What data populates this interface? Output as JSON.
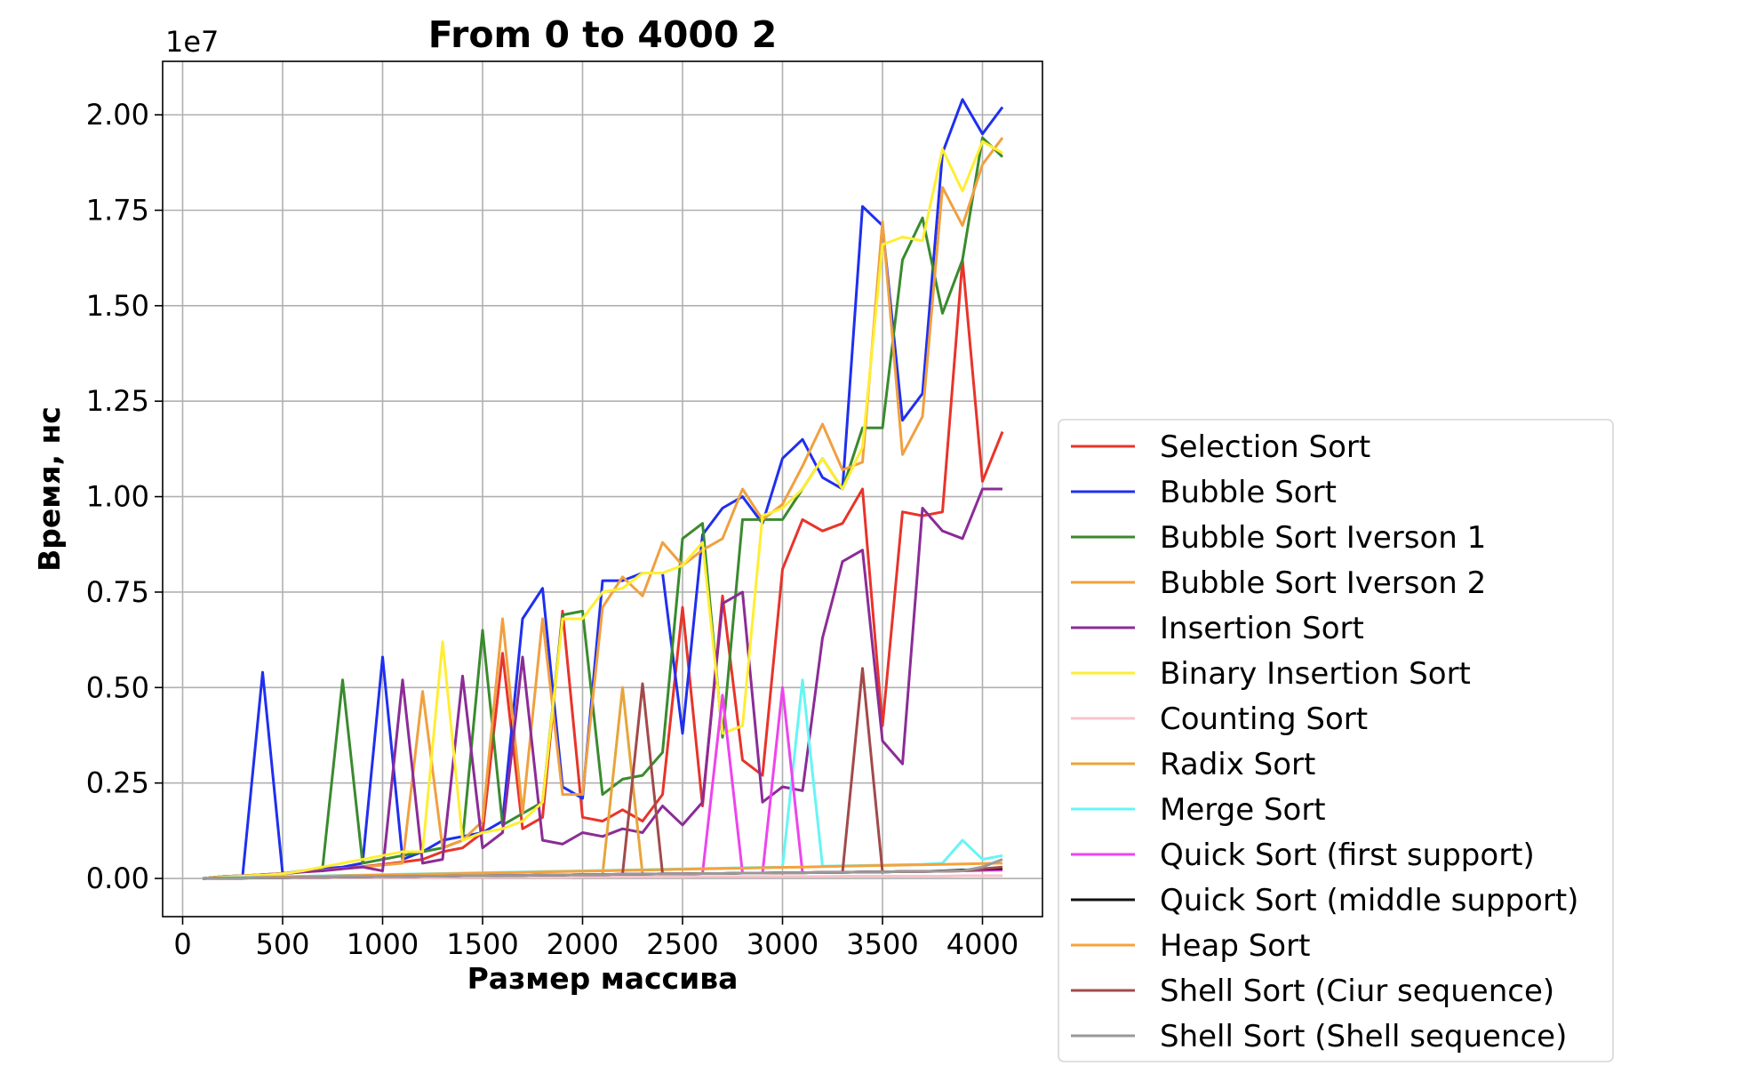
{
  "chart_data": {
    "type": "line",
    "title": "From 0 to 4000 2",
    "xlabel": "Размер массива",
    "ylabel": "Время, нс",
    "y_multiplier_label": "1e7",
    "xlim": [
      -100,
      4300
    ],
    "ylim": [
      -0.1,
      2.14
    ],
    "x_ticks": [
      0,
      500,
      1000,
      1500,
      2000,
      2500,
      3000,
      3500,
      4000
    ],
    "x_tick_labels": [
      "0",
      "500",
      "1000",
      "1500",
      "2000",
      "2500",
      "3000",
      "3500",
      "4000"
    ],
    "y_ticks": [
      0.0,
      0.25,
      0.5,
      0.75,
      1.0,
      1.25,
      1.5,
      1.75,
      2.0
    ],
    "y_tick_labels": [
      "0.00",
      "0.25",
      "0.50",
      "0.75",
      "1.00",
      "1.25",
      "1.50",
      "1.75",
      "2.00"
    ],
    "grid": true,
    "legend_position": "outside-right-bottom",
    "x": [
      100,
      200,
      300,
      400,
      500,
      600,
      700,
      800,
      900,
      1000,
      1100,
      1200,
      1300,
      1400,
      1500,
      1600,
      1700,
      1800,
      1900,
      2000,
      2100,
      2200,
      2300,
      2400,
      2500,
      2600,
      2700,
      2800,
      2900,
      3000,
      3100,
      3200,
      3300,
      3400,
      3500,
      3600,
      3700,
      3800,
      3900,
      4000,
      4100
    ],
    "series": [
      {
        "name": "Selection Sort",
        "color": "#e8342a",
        "values": [
          0.0,
          0.005,
          0.007,
          0.01,
          0.013,
          0.017,
          0.021,
          0.026,
          0.031,
          0.037,
          0.043,
          0.05,
          0.07,
          0.08,
          0.12,
          0.59,
          0.13,
          0.16,
          0.7,
          0.16,
          0.15,
          0.18,
          0.15,
          0.22,
          0.71,
          0.19,
          0.74,
          0.31,
          0.27,
          0.81,
          0.94,
          0.91,
          0.93,
          1.02,
          0.4,
          0.96,
          0.95,
          0.96,
          1.62,
          1.04,
          1.17
        ]
      },
      {
        "name": "Bubble Sort",
        "color": "#1f2ff0",
        "values": [
          0.0,
          0.005,
          0.007,
          0.54,
          0.013,
          0.02,
          0.025,
          0.03,
          0.04,
          0.58,
          0.05,
          0.07,
          0.1,
          0.11,
          0.12,
          0.15,
          0.68,
          0.76,
          0.24,
          0.21,
          0.78,
          0.78,
          0.8,
          0.8,
          0.38,
          0.9,
          0.97,
          1.0,
          0.93,
          1.1,
          1.15,
          1.05,
          1.02,
          1.76,
          1.71,
          1.2,
          1.27,
          1.9,
          2.04,
          1.95,
          2.02
        ]
      },
      {
        "name": "Bubble Sort Iverson 1",
        "color": "#3a8a2e",
        "values": [
          0.0,
          0.005,
          0.007,
          0.01,
          0.013,
          0.018,
          0.028,
          0.52,
          0.04,
          0.05,
          0.06,
          0.07,
          0.08,
          0.1,
          0.65,
          0.14,
          0.17,
          0.2,
          0.69,
          0.7,
          0.22,
          0.26,
          0.27,
          0.33,
          0.89,
          0.93,
          0.37,
          0.94,
          0.94,
          0.94,
          1.02,
          1.1,
          1.02,
          1.18,
          1.18,
          1.62,
          1.73,
          1.48,
          1.62,
          1.94,
          1.89
        ]
      },
      {
        "name": "Bubble Sort Iverson 2",
        "color": "#f0a040",
        "values": [
          0.0,
          0.005,
          0.007,
          0.01,
          0.013,
          0.017,
          0.021,
          0.026,
          0.03,
          0.035,
          0.04,
          0.49,
          0.08,
          0.1,
          0.15,
          0.68,
          0.17,
          0.68,
          0.22,
          0.22,
          0.71,
          0.79,
          0.74,
          0.88,
          0.82,
          0.86,
          0.89,
          1.02,
          0.94,
          0.98,
          1.08,
          1.19,
          1.07,
          1.09,
          1.72,
          1.11,
          1.21,
          1.81,
          1.71,
          1.87,
          1.94
        ]
      },
      {
        "name": "Insertion Sort",
        "color": "#8b2c96",
        "values": [
          0.0,
          0.0,
          0.0,
          0.01,
          0.012,
          0.017,
          0.02,
          0.025,
          0.03,
          0.02,
          0.52,
          0.04,
          0.05,
          0.53,
          0.08,
          0.12,
          0.58,
          0.1,
          0.09,
          0.12,
          0.11,
          0.13,
          0.12,
          0.19,
          0.14,
          0.2,
          0.72,
          0.75,
          0.2,
          0.24,
          0.23,
          0.63,
          0.83,
          0.86,
          0.36,
          0.3,
          0.97,
          0.91,
          0.89,
          1.02,
          1.02
        ]
      },
      {
        "name": "Binary Insertion Sort",
        "color": "#ffee33",
        "values": [
          0.0,
          0.003,
          0.006,
          0.009,
          0.012,
          0.02,
          0.03,
          0.04,
          0.05,
          0.06,
          0.07,
          0.07,
          0.62,
          0.1,
          0.12,
          0.13,
          0.15,
          0.2,
          0.68,
          0.68,
          0.75,
          0.76,
          0.8,
          0.8,
          0.82,
          0.88,
          0.38,
          0.4,
          0.95,
          0.97,
          1.02,
          1.1,
          1.02,
          1.13,
          1.66,
          1.68,
          1.67,
          1.91,
          1.8,
          1.93,
          1.9
        ]
      },
      {
        "name": "Counting Sort",
        "color": "#f7c4cc",
        "values": [
          0.0,
          0.0,
          0.0,
          0.001,
          0.001,
          0.001,
          0.001,
          0.002,
          0.002,
          0.002,
          0.002,
          0.002,
          0.002,
          0.003,
          0.003,
          0.003,
          0.003,
          0.003,
          0.003,
          0.004,
          0.004,
          0.004,
          0.004,
          0.004,
          0.004,
          0.005,
          0.005,
          0.005,
          0.005,
          0.005,
          0.005,
          0.005,
          0.006,
          0.006,
          0.006,
          0.006,
          0.006,
          0.006,
          0.007,
          0.007,
          0.007
        ]
      },
      {
        "name": "Radix Sort",
        "color": "#e8a43a",
        "values": [
          0.0,
          0.001,
          0.001,
          0.002,
          0.002,
          0.003,
          0.003,
          0.004,
          0.004,
          0.005,
          0.005,
          0.006,
          0.006,
          0.007,
          0.007,
          0.008,
          0.008,
          0.009,
          0.009,
          0.01,
          0.01,
          0.5,
          0.011,
          0.012,
          0.012,
          0.013,
          0.013,
          0.014,
          0.014,
          0.015,
          0.015,
          0.016,
          0.016,
          0.017,
          0.017,
          0.018,
          0.018,
          0.019,
          0.02,
          0.021,
          0.022
        ]
      },
      {
        "name": "Merge Sort",
        "color": "#66f5f5",
        "values": [
          0.0,
          0.002,
          0.003,
          0.004,
          0.005,
          0.006,
          0.007,
          0.008,
          0.009,
          0.01,
          0.011,
          0.012,
          0.013,
          0.014,
          0.015,
          0.016,
          0.017,
          0.018,
          0.019,
          0.02,
          0.021,
          0.022,
          0.023,
          0.024,
          0.025,
          0.026,
          0.027,
          0.028,
          0.029,
          0.03,
          0.52,
          0.032,
          0.033,
          0.034,
          0.035,
          0.036,
          0.037,
          0.04,
          0.1,
          0.05,
          0.06
        ]
      },
      {
        "name": "Quick Sort (first support)",
        "color": "#ee44ee",
        "values": [
          0.0,
          0.001,
          0.001,
          0.002,
          0.002,
          0.003,
          0.003,
          0.004,
          0.004,
          0.005,
          0.005,
          0.006,
          0.006,
          0.007,
          0.007,
          0.008,
          0.008,
          0.009,
          0.009,
          0.01,
          0.01,
          0.011,
          0.011,
          0.012,
          0.012,
          0.013,
          0.48,
          0.014,
          0.014,
          0.5,
          0.015,
          0.016,
          0.016,
          0.017,
          0.017,
          0.018,
          0.018,
          0.019,
          0.02,
          0.021,
          0.022
        ]
      },
      {
        "name": "Quick Sort (middle support)",
        "color": "#111111",
        "values": [
          0.0,
          0.001,
          0.001,
          0.002,
          0.002,
          0.003,
          0.003,
          0.004,
          0.004,
          0.005,
          0.005,
          0.006,
          0.006,
          0.007,
          0.007,
          0.008,
          0.008,
          0.009,
          0.009,
          0.01,
          0.01,
          0.011,
          0.011,
          0.012,
          0.012,
          0.013,
          0.013,
          0.014,
          0.014,
          0.015,
          0.015,
          0.016,
          0.016,
          0.017,
          0.017,
          0.018,
          0.018,
          0.02,
          0.022,
          0.024,
          0.026
        ]
      },
      {
        "name": "Heap Sort",
        "color": "#f5a23c",
        "values": [
          0.0,
          0.001,
          0.002,
          0.003,
          0.004,
          0.005,
          0.006,
          0.007,
          0.008,
          0.009,
          0.01,
          0.011,
          0.012,
          0.013,
          0.014,
          0.015,
          0.016,
          0.017,
          0.018,
          0.019,
          0.02,
          0.021,
          0.022,
          0.023,
          0.024,
          0.025,
          0.026,
          0.027,
          0.028,
          0.029,
          0.03,
          0.031,
          0.032,
          0.033,
          0.034,
          0.035,
          0.036,
          0.037,
          0.038,
          0.039,
          0.04
        ]
      },
      {
        "name": "Shell Sort (Ciur sequence)",
        "color": "#a24a4a",
        "values": [
          0.0,
          0.001,
          0.001,
          0.002,
          0.002,
          0.003,
          0.003,
          0.004,
          0.004,
          0.005,
          0.005,
          0.006,
          0.006,
          0.007,
          0.007,
          0.008,
          0.008,
          0.009,
          0.009,
          0.01,
          0.01,
          0.011,
          0.51,
          0.012,
          0.012,
          0.013,
          0.013,
          0.014,
          0.014,
          0.015,
          0.015,
          0.016,
          0.016,
          0.55,
          0.017,
          0.018,
          0.018,
          0.019,
          0.02,
          0.025,
          0.03
        ]
      },
      {
        "name": "Shell Sort (Shell sequence)",
        "color": "#999999",
        "values": [
          0.0,
          0.001,
          0.001,
          0.002,
          0.002,
          0.003,
          0.003,
          0.004,
          0.004,
          0.005,
          0.005,
          0.006,
          0.006,
          0.007,
          0.007,
          0.008,
          0.008,
          0.009,
          0.009,
          0.01,
          0.01,
          0.011,
          0.011,
          0.012,
          0.012,
          0.013,
          0.013,
          0.014,
          0.014,
          0.015,
          0.015,
          0.016,
          0.016,
          0.017,
          0.017,
          0.018,
          0.018,
          0.019,
          0.02,
          0.03,
          0.05
        ]
      }
    ]
  }
}
